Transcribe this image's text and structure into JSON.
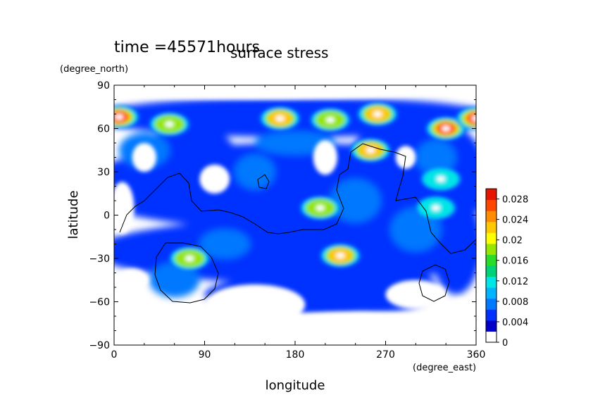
{
  "chart_data": {
    "type": "heatmap",
    "title": "surface stress",
    "subtitle": "time =45571hours",
    "xlabel": "longitude",
    "ylabel": "latitude",
    "x_unit": "(degree_east)",
    "y_unit": "(degree_north)",
    "xlim": [
      0,
      360
    ],
    "ylim": [
      -90,
      90
    ],
    "x_ticks": [
      0,
      90,
      180,
      270,
      360
    ],
    "y_ticks": [
      90,
      60,
      30,
      0,
      -30,
      -60,
      -90
    ],
    "x_tick_labels": [
      "0",
      "90",
      "180",
      "270",
      "360"
    ],
    "y_tick_labels": [
      "90",
      "60",
      "30",
      "0",
      "−30",
      "−60",
      "−90"
    ],
    "colorbar": {
      "min": 0,
      "max": 0.03,
      "tick_values": [
        0,
        0.004,
        0.008,
        0.012,
        0.016,
        0.02,
        0.024,
        0.028
      ],
      "tick_labels": [
        "0",
        "0.004",
        "0.008",
        "0.012",
        "0.016",
        "0.02",
        "0.024",
        "0.028"
      ],
      "colors": [
        "#ffffff",
        "#0000c8",
        "#0030ff",
        "#0078ff",
        "#00b4ff",
        "#00e6e6",
        "#00d278",
        "#28dc28",
        "#96e600",
        "#ffff00",
        "#ffc800",
        "#ff8c00",
        "#ff4600",
        "#e61400"
      ]
    },
    "stress_maxima": [
      {
        "lon": 5,
        "lat": 68,
        "value": 0.028
      },
      {
        "lon": 55,
        "lat": 63,
        "value": 0.018
      },
      {
        "lon": 165,
        "lat": 67,
        "value": 0.026
      },
      {
        "lon": 215,
        "lat": 66,
        "value": 0.022
      },
      {
        "lon": 262,
        "lat": 70,
        "value": 0.024
      },
      {
        "lon": 330,
        "lat": 60,
        "value": 0.028
      },
      {
        "lon": 360,
        "lat": 67,
        "value": 0.028
      },
      {
        "lon": 255,
        "lat": 45,
        "value": 0.026
      },
      {
        "lon": 205,
        "lat": 5,
        "value": 0.02
      },
      {
        "lon": 225,
        "lat": -28,
        "value": 0.026
      },
      {
        "lon": 75,
        "lat": -30,
        "value": 0.022
      },
      {
        "lon": 320,
        "lat": 5,
        "value": 0.014
      },
      {
        "lon": 325,
        "lat": 25,
        "value": 0.014
      }
    ]
  }
}
